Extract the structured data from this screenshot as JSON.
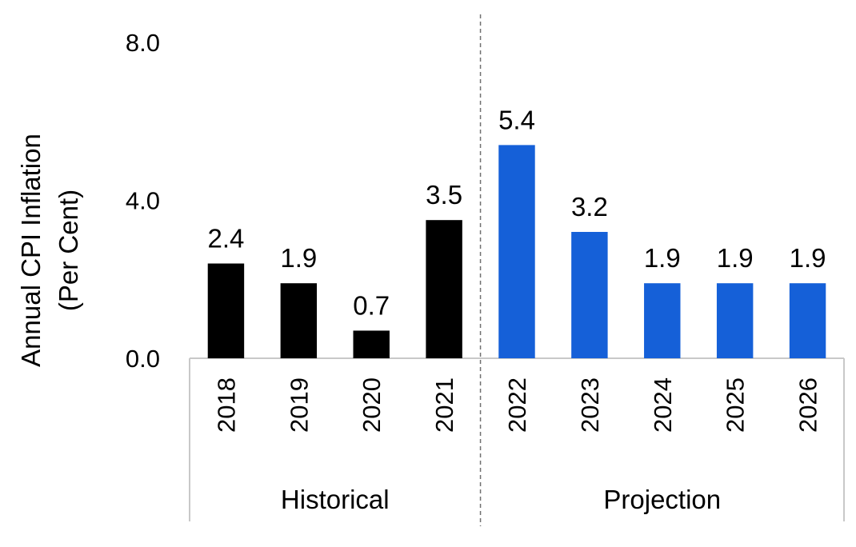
{
  "chart_data": {
    "type": "bar",
    "ylabel": [
      "Annual CPI Inflation",
      "(Per Cent)"
    ],
    "yticks": [
      "0.0",
      "4.0",
      "8.0"
    ],
    "ylim": [
      0,
      8
    ],
    "grid": false,
    "categories": [
      "2018",
      "2019",
      "2020",
      "2021",
      "2022",
      "2023",
      "2024",
      "2025",
      "2026"
    ],
    "values": [
      2.4,
      1.9,
      0.7,
      3.5,
      5.4,
      3.2,
      1.9,
      1.9,
      1.9
    ],
    "value_labels": [
      "2.4",
      "1.9",
      "0.7",
      "3.5",
      "5.4",
      "3.2",
      "1.9",
      "1.9",
      "1.9"
    ],
    "groups": [
      {
        "label": "Historical",
        "count": 4,
        "color": "#000000"
      },
      {
        "label": "Projection",
        "count": 5,
        "color": "#1560d8"
      }
    ],
    "divider_style": "dashed"
  }
}
